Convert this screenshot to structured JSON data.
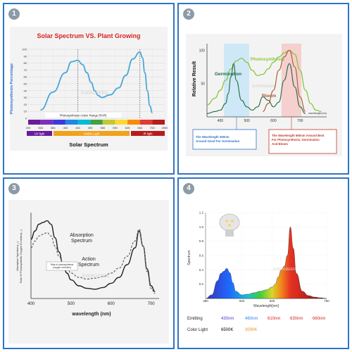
{
  "colors": {
    "frame": "#2f73c6",
    "badge": "#8c9ba8",
    "curve_blue": "#4aa7d8",
    "title_red": "#d8241c",
    "green": "#5fa31a",
    "dark_green": "#1f6b3b",
    "brown": "#a75a2a",
    "uv_purple": "#6a1b9a",
    "ir_red": "#b71c1c",
    "violet": "#5b36d3",
    "blue": "#2f7ff0",
    "orange": "#f08c1e"
  },
  "panels": [
    {
      "number": "1"
    },
    {
      "number": "2"
    },
    {
      "number": "3"
    },
    {
      "number": "4"
    }
  ],
  "chart_data": [
    {
      "type": "line",
      "title": "Solar Spectrum VS. Plant Growing",
      "ylabel": "Photosynthesis Percentage",
      "xlabel": "Solar Spectrum",
      "xlim": [
        200,
        2500
      ],
      "ylim": [
        0,
        100
      ],
      "x_ticks": [
        "200",
        "360",
        "380",
        "400",
        "440",
        "495",
        "565",
        "590",
        "625",
        "660",
        "760",
        "2500"
      ],
      "y_ticks": [
        "0",
        "10",
        "20",
        "30",
        "40",
        "50",
        "60",
        "70",
        "80",
        "90",
        "100"
      ],
      "series": [
        {
          "x": [
            360,
            380,
            400,
            420,
            440,
            460,
            480,
            500,
            520,
            540,
            560,
            580,
            600,
            620,
            640,
            660,
            680,
            700,
            720,
            740,
            760
          ],
          "y": [
            12,
            38,
            66,
            82,
            84,
            78,
            66,
            52,
            40,
            33,
            30,
            34,
            44,
            62,
            86,
            96,
            88,
            66,
            40,
            18,
            8
          ]
        }
      ],
      "markers": [
        440,
        660
      ],
      "par_label": "Photosynthesis Active Range (PAR)",
      "bands": [
        "UV light",
        "Visible Light",
        "IR light"
      ],
      "watermark": "EVERGREEN"
    },
    {
      "type": "line",
      "ylabel": "Relative Result",
      "xlabel": "wavelength(nm)",
      "xlim": [
        350,
        800
      ],
      "ylim": [
        0,
        110
      ],
      "x_ticks": [
        "400",
        "500",
        "600",
        "700"
      ],
      "y_ticks": [
        "50",
        "100"
      ],
      "series": [
        {
          "name": "Photosynthesis",
          "x": [
            350,
            380,
            400,
            420,
            440,
            460,
            480,
            500,
            520,
            540,
            560,
            580,
            600,
            620,
            640,
            660,
            680,
            700,
            720,
            740,
            760,
            780
          ],
          "y": [
            18,
            28,
            40,
            55,
            72,
            84,
            88,
            82,
            70,
            62,
            64,
            72,
            82,
            90,
            96,
            100,
            94,
            70,
            40,
            20,
            10,
            8
          ]
        },
        {
          "name": "Germination",
          "x": [
            350,
            380,
            400,
            420,
            430,
            440,
            450,
            460,
            480,
            500,
            520,
            540,
            560,
            580,
            600,
            620,
            640,
            660,
            680,
            700,
            720
          ],
          "y": [
            5,
            8,
            10,
            20,
            35,
            60,
            80,
            55,
            25,
            15,
            10,
            15,
            30,
            25,
            15,
            22,
            55,
            80,
            45,
            15,
            5
          ]
        },
        {
          "name": "Bloom",
          "x": [
            560,
            580,
            600,
            620,
            640,
            660,
            680,
            700,
            720
          ],
          "y": [
            8,
            20,
            40,
            70,
            90,
            100,
            75,
            30,
            8
          ]
        }
      ],
      "highlight_bands": [
        [
          400,
          480
        ],
        [
          630,
          690
        ]
      ],
      "notes": [
        "The Wavelength 450nm Around Good For Germination",
        "The Wavelength 660nm Around Best For Photosynthesis, Germination And Bloom"
      ],
      "watermark": "EVERGREEN"
    },
    {
      "type": "line",
      "ylabel": "Absorption Spectrum(—)\nRate Of Photosynthetic Oxygen Evolution(---)",
      "xlabel": "wavelength (nm)",
      "xlim": [
        400,
        700
      ],
      "ylim": [
        0,
        100
      ],
      "x_ticks": [
        "400",
        "500",
        "600",
        "700"
      ],
      "series": [
        {
          "name": "Absorption Spectrum",
          "x": [
            400,
            410,
            420,
            430,
            440,
            450,
            460,
            470,
            480,
            490,
            500,
            520,
            540,
            560,
            580,
            600,
            620,
            640,
            660,
            670,
            680,
            690,
            700,
            710
          ],
          "y": [
            70,
            80,
            88,
            90,
            92,
            88,
            72,
            55,
            40,
            30,
            22,
            15,
            12,
            11,
            13,
            18,
            25,
            40,
            60,
            80,
            62,
            35,
            15,
            8
          ]
        },
        {
          "name": "Action Spectrum",
          "x": [
            400,
            410,
            420,
            430,
            440,
            450,
            460,
            470,
            480,
            490,
            500,
            520,
            540,
            560,
            580,
            600,
            620,
            640,
            660,
            670,
            680,
            690,
            700,
            710
          ],
          "y": [
            60,
            68,
            74,
            76,
            78,
            74,
            62,
            50,
            42,
            36,
            30,
            25,
            23,
            24,
            26,
            30,
            36,
            50,
            68,
            82,
            62,
            32,
            12,
            6
          ]
        }
      ],
      "inset_label": "Rate of photosynthesis (oxygen evolution)",
      "watermark": "EVERGOTEN"
    },
    {
      "type": "line",
      "ylabel": "Spectrum",
      "xlabel": "Wavelength[nm]",
      "xlim": [
        380,
        780
      ],
      "ylim": [
        0,
        1.2
      ],
      "x_ticks": [
        "380",
        "500",
        "600",
        "780"
      ],
      "y_ticks": [
        "0.2",
        "0.4",
        "0.6",
        "0.8",
        "1.0",
        "1.2"
      ],
      "series": [
        {
          "x": [
            380,
            400,
            420,
            430,
            440,
            450,
            460,
            470,
            480,
            500,
            520,
            540,
            560,
            580,
            600,
            610,
            620,
            630,
            640,
            650,
            660,
            670,
            680,
            700,
            720,
            740,
            760,
            780
          ],
          "y": [
            0,
            0.05,
            0.25,
            0.35,
            0.38,
            0.42,
            0.36,
            0.22,
            0.1,
            0.05,
            0.06,
            0.08,
            0.1,
            0.12,
            0.16,
            0.2,
            0.3,
            0.4,
            0.45,
            0.6,
            1.0,
            0.7,
            0.35,
            0.1,
            0.04,
            0.02,
            0.01,
            0
          ]
        }
      ],
      "emitting_label": "Emitting",
      "emitting": [
        {
          "text": "430nm",
          "color": "#5b36d3"
        },
        {
          "text": "460nm",
          "color": "#2f7ff0"
        },
        {
          "text": "610nm",
          "color": "#d8241c"
        },
        {
          "text": "630nm",
          "color": "#d8241c"
        },
        {
          "text": "660nm",
          "color": "#d8241c"
        }
      ],
      "color_light_label": "Color Light",
      "color_light": [
        {
          "text": "6500K",
          "color": "#000000"
        },
        {
          "text": "3000K",
          "color": "#f08c1e"
        }
      ],
      "watermark": "EVERGREEN"
    }
  ]
}
